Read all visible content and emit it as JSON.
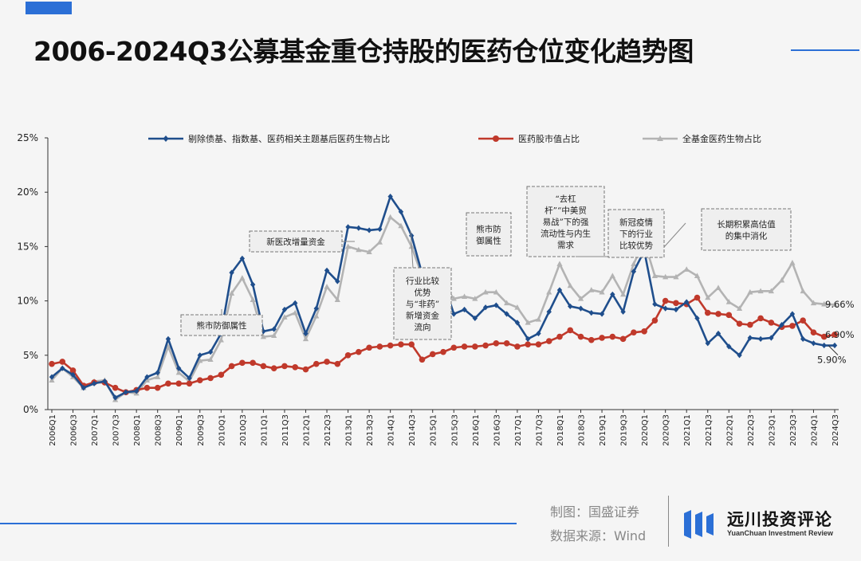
{
  "header": {
    "title": "2006-2024Q3公募基金重仓持股的医药仓位变化趋势图",
    "accent_color": "#2b6fd6"
  },
  "footer": {
    "credit_maker": "制图：国盛证券",
    "credit_source": "数据来源：Wind",
    "logo_name": "远川投资评论",
    "logo_sub": "YuanChuan Investment Review"
  },
  "chart_data": {
    "type": "line",
    "x": [
      "2006Q1",
      "2006Q2",
      "2006Q3",
      "2006Q4",
      "2007Q1",
      "2007Q2",
      "2007Q3",
      "2007Q4",
      "2008Q1",
      "2008Q2",
      "2008Q3",
      "2008Q4",
      "2009Q1",
      "2009Q2",
      "2009Q3",
      "2009Q4",
      "2010Q1",
      "2010Q2",
      "2010Q3",
      "2010Q4",
      "2011Q1",
      "2011Q2",
      "2011Q3",
      "2011Q4",
      "2012Q1",
      "2012Q2",
      "2012Q3",
      "2012Q4",
      "2013Q1",
      "2013Q2",
      "2013Q3",
      "2013Q4",
      "2014Q1",
      "2014Q2",
      "2014Q3",
      "2014Q4",
      "2015Q1",
      "2015Q2",
      "2015Q3",
      "2015Q4",
      "2016Q1",
      "2016Q2",
      "2016Q3",
      "2016Q4",
      "2017Q1",
      "2017Q2",
      "2017Q3",
      "2017Q4",
      "2018Q1",
      "2018Q2",
      "2018Q3",
      "2018Q4",
      "2019Q1",
      "2019Q2",
      "2019Q3",
      "2019Q4",
      "2020Q1",
      "2020Q2",
      "2020Q3",
      "2020Q4",
      "2021Q1",
      "2021Q2",
      "2021Q3",
      "2021Q4",
      "2022Q1",
      "2022Q2",
      "2022Q3",
      "2022Q4",
      "2023Q1",
      "2023Q2",
      "2023Q3",
      "2023Q4",
      "2024Q1",
      "2024Q2",
      "2024Q3"
    ],
    "xtick_labels": [
      "2006Q1",
      "2006Q3",
      "2007Q1",
      "2007Q3",
      "2008Q1",
      "2008Q3",
      "2009Q1",
      "2009Q3",
      "2010Q1",
      "2010Q3",
      "2011Q1",
      "2011Q3",
      "2012Q1",
      "2012Q3",
      "2013Q1",
      "2013Q3",
      "2014Q1",
      "2014Q3",
      "2015Q1",
      "2015Q3",
      "2016Q1",
      "2016Q3",
      "2017Q1",
      "2017Q3",
      "2018Q1",
      "2018Q3",
      "2019Q1",
      "2019Q3",
      "2020Q1",
      "2020Q3",
      "2021Q1",
      "2021Q3",
      "2022Q1",
      "2022Q3",
      "2023Q1",
      "2023Q3",
      "2024Q1",
      "2024Q3"
    ],
    "yticks": [
      "0%",
      "5%",
      "10%",
      "15%",
      "20%",
      "25%"
    ],
    "ylim": [
      0,
      25
    ],
    "grid": false,
    "legend_position": "top",
    "series": [
      {
        "name": "剔除债基、指数基、医药相关主题基后医药生物占比",
        "color": "#1f4e8c",
        "marker": "diamond",
        "values": [
          3.0,
          3.8,
          3.2,
          2.0,
          2.4,
          2.6,
          1.1,
          1.6,
          1.7,
          3.0,
          3.4,
          6.5,
          3.8,
          2.9,
          5.0,
          5.3,
          7.0,
          12.6,
          13.9,
          11.5,
          7.2,
          7.4,
          9.2,
          9.8,
          7.0,
          9.3,
          12.8,
          11.8,
          16.8,
          16.7,
          16.5,
          16.6,
          19.6,
          18.2,
          16.0,
          12.5,
          12.0,
          11.8,
          8.8,
          9.2,
          8.4,
          9.4,
          9.6,
          8.8,
          8.0,
          6.5,
          7.0,
          9.0,
          11.0,
          9.5,
          9.3,
          8.9,
          8.8,
          10.6,
          9.0,
          12.7,
          14.6,
          9.7,
          9.3,
          9.2,
          9.9,
          8.4,
          6.1,
          7.0,
          5.8,
          5.0,
          6.6,
          6.5,
          6.6,
          7.8,
          8.8,
          6.5,
          6.1,
          5.9,
          5.9
        ]
      },
      {
        "name": "医药股市值占比",
        "color": "#c0392b",
        "marker": "circle",
        "values": [
          4.2,
          4.4,
          3.6,
          2.2,
          2.5,
          2.5,
          2.0,
          1.6,
          1.8,
          2.0,
          2.0,
          2.4,
          2.4,
          2.4,
          2.7,
          2.9,
          3.2,
          4.0,
          4.3,
          4.3,
          4.0,
          3.8,
          4.0,
          3.9,
          3.7,
          4.2,
          4.4,
          4.2,
          5.0,
          5.3,
          5.7,
          5.8,
          5.9,
          6.0,
          6.0,
          4.6,
          5.1,
          5.3,
          5.7,
          5.8,
          5.8,
          5.9,
          6.1,
          6.1,
          5.8,
          6.0,
          6.0,
          6.3,
          6.7,
          7.3,
          6.7,
          6.4,
          6.6,
          6.7,
          6.5,
          7.1,
          7.2,
          8.2,
          10.0,
          9.8,
          9.7,
          10.3,
          8.9,
          8.8,
          8.7,
          7.9,
          7.8,
          8.4,
          8.0,
          7.6,
          7.7,
          8.2,
          7.1,
          6.7,
          6.9
        ]
      },
      {
        "name": "全基金医药生物占比",
        "color": "#b3b3b3",
        "marker": "triangle",
        "values": [
          2.7,
          3.8,
          3.0,
          2.0,
          2.6,
          2.7,
          0.9,
          1.6,
          1.5,
          2.7,
          3.0,
          5.8,
          3.4,
          2.6,
          4.5,
          4.6,
          6.4,
          10.7,
          12.1,
          10.1,
          6.7,
          6.8,
          8.5,
          8.9,
          6.5,
          8.6,
          11.3,
          10.1,
          15.0,
          14.7,
          14.5,
          15.4,
          17.7,
          16.9,
          15.0,
          12.3,
          12.2,
          11.5,
          10.2,
          10.4,
          10.2,
          10.8,
          10.8,
          9.8,
          9.4,
          8.0,
          8.3,
          10.8,
          13.4,
          11.4,
          10.2,
          11.0,
          10.8,
          12.3,
          10.6,
          13.4,
          15.5,
          12.3,
          12.2,
          12.2,
          12.9,
          12.3,
          10.3,
          11.2,
          9.9,
          9.3,
          10.8,
          10.9,
          10.9,
          11.9,
          13.5,
          10.9,
          9.8,
          9.7,
          9.66
        ]
      }
    ],
    "end_labels": [
      {
        "text": "9.66%",
        "series": 2
      },
      {
        "text": "6.90%",
        "series": 1
      },
      {
        "text": "5.90%",
        "series": 0
      }
    ],
    "annotations": [
      {
        "text": "熊市防御属性",
        "arrow": "true"
      },
      {
        "text": "新医改增量资金",
        "arrow": "true"
      },
      {
        "text": "行业比较\n优势\n与“非药”\n新增资金\n流向",
        "arrow": "true"
      },
      {
        "text": "熊市防\n御属性",
        "arrow": "false"
      },
      {
        "text": "“去杠\n杆”“中美贸\n易战”下的强\n流动性与内生\n需求",
        "arrow": "true"
      },
      {
        "text": "新冠疫情\n下的行业\n比较优势",
        "arrow": "true"
      },
      {
        "text": "长期积累高估值\n的集中消化",
        "arrow": "false"
      }
    ]
  }
}
